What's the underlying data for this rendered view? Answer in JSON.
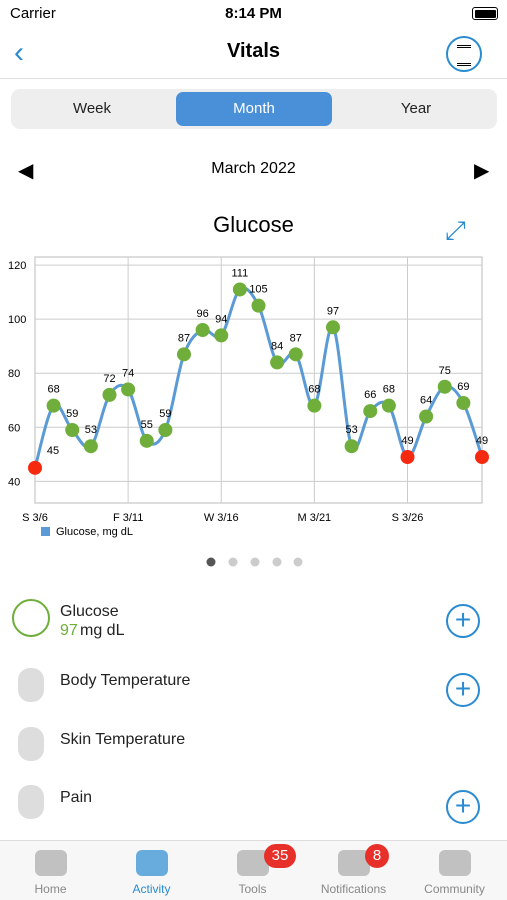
{
  "status_bar": {
    "carrier": "Carrier",
    "time": "8:14 PM"
  },
  "nav": {
    "title": "Vitals"
  },
  "segments": {
    "items": [
      "Week",
      "Month",
      "Year"
    ],
    "selected": 1
  },
  "period": "March 2022",
  "chart_data": {
    "type": "line",
    "title": "Glucose",
    "categories": [
      "S 3/6",
      null,
      null,
      null,
      null,
      "F 3/11",
      null,
      null,
      null,
      null,
      "W 3/16",
      null,
      null,
      null,
      null,
      "M 3/21",
      null,
      null,
      null,
      null,
      "S 3/26",
      null,
      null,
      null,
      null
    ],
    "series": [
      {
        "name": "Glucose, mg dL",
        "color": "#5b9bd5",
        "values": [
          45,
          68,
          59,
          53,
          72,
          74,
          55,
          59,
          87,
          96,
          94,
          111,
          105,
          84,
          87,
          68,
          97,
          53,
          66,
          68,
          49,
          64,
          75,
          69,
          49
        ],
        "marker_colors": [
          "#f5290f",
          "#6fae3a",
          "#6fae3a",
          "#6fae3a",
          "#6fae3a",
          "#6fae3a",
          "#6fae3a",
          "#6fae3a",
          "#6fae3a",
          "#6fae3a",
          "#6fae3a",
          "#6fae3a",
          "#6fae3a",
          "#6fae3a",
          "#6fae3a",
          "#6fae3a",
          "#6fae3a",
          "#6fae3a",
          "#6fae3a",
          "#6fae3a",
          "#f5290f",
          "#6fae3a",
          "#6fae3a",
          "#6fae3a",
          "#f5290f"
        ]
      }
    ],
    "ylim": [
      32,
      123
    ],
    "yticks": [
      40,
      60,
      80,
      100,
      120
    ],
    "grid": true
  },
  "list": [
    {
      "label": "Glucose",
      "value": "97",
      "unit": "mg dL"
    },
    {
      "label": "Body Temperature"
    },
    {
      "label": "Skin Temperature"
    },
    {
      "label": "Pain"
    }
  ],
  "tabs": [
    {
      "label": "Home"
    },
    {
      "label": "Activity",
      "badge": null
    },
    {
      "label": "Tools",
      "badge": "35"
    },
    {
      "label": "Notifications",
      "badge": "8"
    },
    {
      "label": "Community"
    }
  ]
}
